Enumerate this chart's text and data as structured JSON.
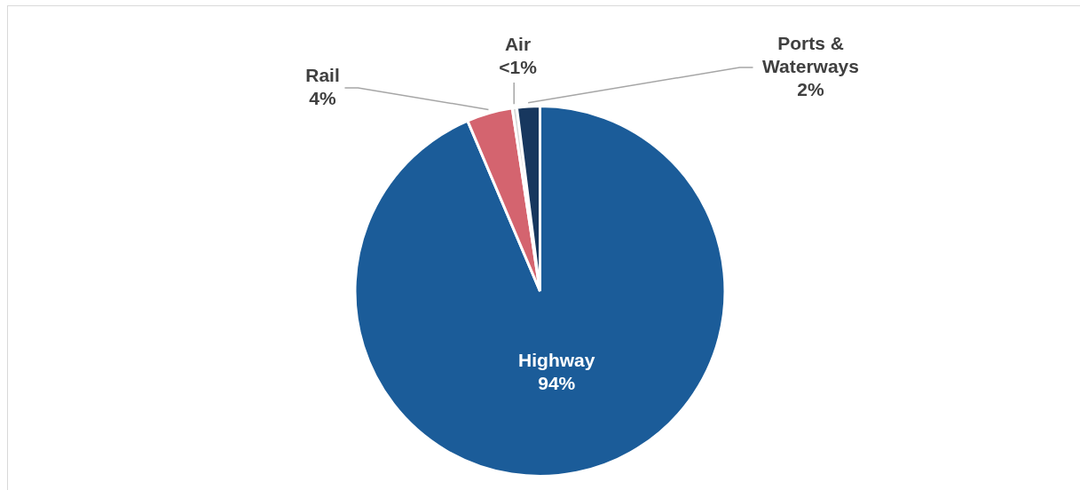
{
  "chart_data": {
    "type": "pie",
    "categories": [
      "Highway",
      "Rail",
      "Air",
      "Ports & Waterways"
    ],
    "values": [
      93.6,
      4,
      0.4,
      2
    ],
    "colors": [
      "#1b5c99",
      "#d4646f",
      "#d9d9d9",
      "#17375e"
    ],
    "value_labels": [
      "94%",
      "4%",
      "<1%",
      "2%"
    ],
    "legend": false
  }
}
